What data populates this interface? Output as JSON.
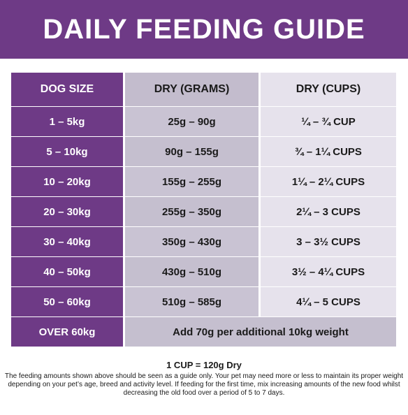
{
  "title": "DAILY FEEDING GUIDE",
  "table": {
    "headers": [
      "DOG SIZE",
      "DRY (GRAMS)",
      "DRY (CUPS)"
    ],
    "rows": [
      [
        "1 – 5kg",
        "25g – 90g",
        "¼ – ¾ CUP"
      ],
      [
        "5 – 10kg",
        "90g – 155g",
        "¾ – 1¼ CUPS"
      ],
      [
        "10 – 20kg",
        "155g – 255g",
        "1¼ – 2¼ CUPS"
      ],
      [
        "20 – 30kg",
        "255g – 350g",
        "2¼ – 3 CUPS"
      ],
      [
        "30 – 40kg",
        "350g – 430g",
        "3 – 3½ CUPS"
      ],
      [
        "40 – 50kg",
        "430g – 510g",
        "3½ – 4¼ CUPS"
      ],
      [
        "50 – 60kg",
        "510g – 585g",
        "4¼ – 5 CUPS"
      ]
    ],
    "last_row": {
      "size": "OVER 60kg",
      "text": "Add 70g per additional 10kg weight"
    }
  },
  "footer": {
    "conversion": "1 CUP = 120g Dry",
    "note": "The feeding amounts shown above should be seen as a guide only. Your pet may need more or less to maintain its proper weight depending on your pet’s age, breed and activity level. If feeding for the first time, mix increasing amounts of the new food whilst decreasing the old food over a period of 5 to 7 days."
  },
  "colors": {
    "purple": "#6e3a86",
    "mid_lilac": "#c5bfcf",
    "light_lilac": "#e6e2ec"
  }
}
